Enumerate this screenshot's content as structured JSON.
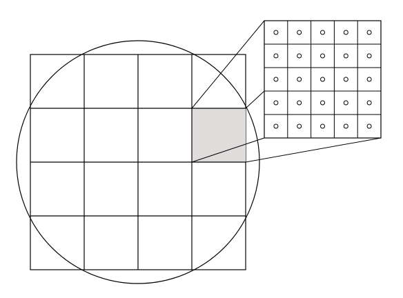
{
  "diagram": {
    "grid": {
      "rows": 4,
      "cols": 4
    },
    "highlighted_cell": {
      "row": 1,
      "col": 3
    },
    "zoom_grid": {
      "rows": 5,
      "cols": 5,
      "marker": "small-circle-icon"
    },
    "colors": {
      "stroke": "#000000",
      "highlight": "#e0dcdc",
      "background": "#ffffff"
    }
  }
}
